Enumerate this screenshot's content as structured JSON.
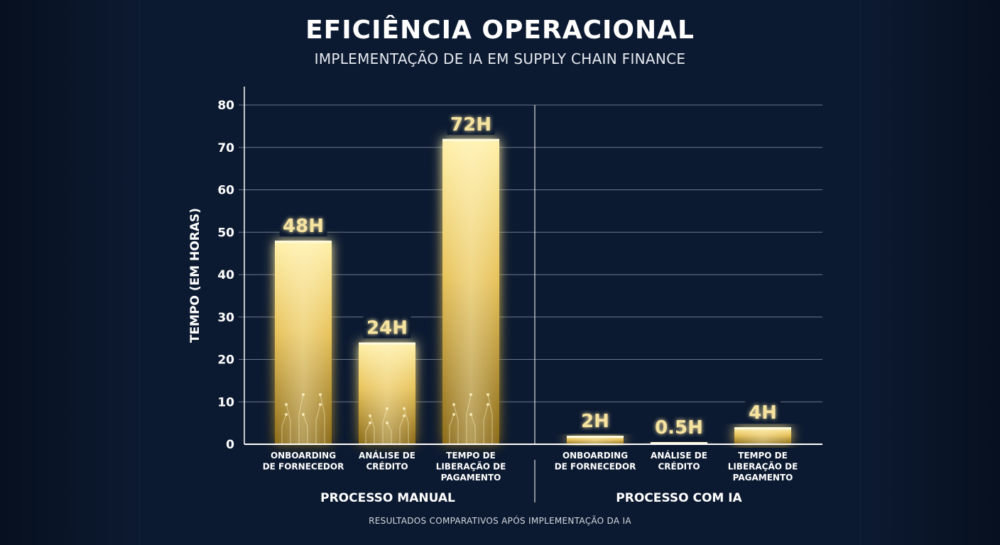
{
  "header": {
    "title": "EFICIÊNCIA OPERACIONAL",
    "subtitle": "IMPLEMENTAÇÃO DE IA EM SUPPLY CHAIN FINANCE"
  },
  "footer": {
    "note": "RESULTADOS COMPARATIVOS APÓS IMPLEMENTAÇÃO DA IA"
  },
  "colors": {
    "background": "#0c1a31",
    "bar_top": "#fff0a8",
    "bar_bottom": "#8a6a18",
    "value_label": "#f6e3a0",
    "grid": "#8c96a8"
  },
  "chart_data": {
    "type": "bar",
    "ylabel": "TEMPO (EM HORAS)",
    "xlabel": "",
    "ylim": [
      0,
      80
    ],
    "yticks": [
      0,
      10,
      20,
      30,
      40,
      50,
      60,
      70,
      80
    ],
    "grid": true,
    "groups": [
      {
        "name": "PROCESSO MANUAL",
        "bars": [
          {
            "category": [
              "ONBOARDING",
              "DE FORNECEDOR"
            ],
            "value": 48,
            "label": "48H"
          },
          {
            "category": [
              "ANÁLISE DE",
              "CRÉDITO"
            ],
            "value": 24,
            "label": "24H"
          },
          {
            "category": [
              "TEMPO DE",
              "LIBERAÇÃO DE",
              "PAGAMENTO"
            ],
            "value": 72,
            "label": "72H"
          }
        ]
      },
      {
        "name": "PROCESSO COM IA",
        "bars": [
          {
            "category": [
              "ONBOARDING",
              "DE FORNECEDOR"
            ],
            "value": 2,
            "label": "2H"
          },
          {
            "category": [
              "ANÁLISE DE",
              "CRÉDITO"
            ],
            "value": 0.5,
            "label": "0.5H"
          },
          {
            "category": [
              "TEMPO DE",
              "LIBERAÇÃO DE",
              "PAGAMENTO"
            ],
            "value": 4,
            "label": "4H"
          }
        ]
      }
    ]
  }
}
